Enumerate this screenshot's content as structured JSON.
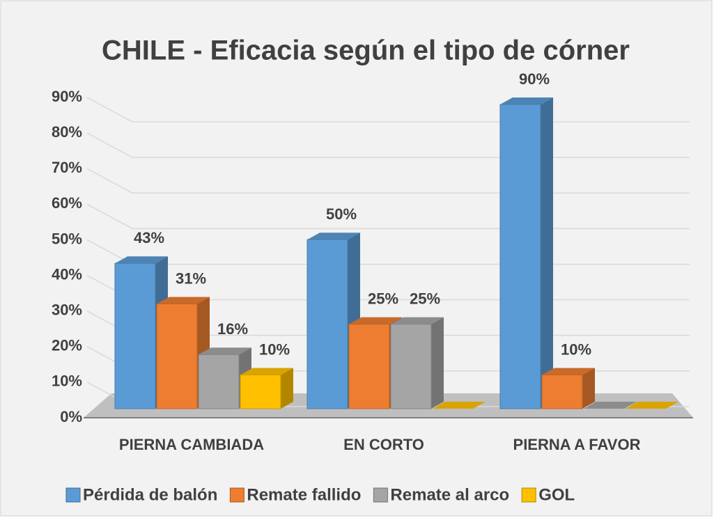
{
  "chart_data": {
    "type": "bar3d",
    "title": "CHILE - Eficacia según el tipo de córner",
    "categories": [
      "PIERNA CAMBIADA",
      "EN CORTO",
      "PIERNA A FAVOR"
    ],
    "series": [
      {
        "name": "Pérdida de balón",
        "color": "#5b9bd5",
        "values": [
          43,
          50,
          90
        ],
        "value_labels": [
          "43%",
          "50%",
          "90%"
        ]
      },
      {
        "name": "Remate fallido",
        "color": "#ed7d31",
        "values": [
          31,
          25,
          10
        ],
        "value_labels": [
          "31%",
          "25%",
          "10%"
        ]
      },
      {
        "name": "Remate al arco",
        "color": "#a5a5a5",
        "values": [
          16,
          25,
          0
        ],
        "value_labels": [
          "16%",
          "25%",
          null
        ]
      },
      {
        "name": "GOL",
        "color": "#ffc000",
        "values": [
          10,
          0,
          0
        ],
        "value_labels": [
          "10%",
          null,
          null
        ]
      }
    ],
    "ylim": [
      0,
      90
    ],
    "yticks": [
      {
        "value": 0,
        "label": "0%"
      },
      {
        "value": 10,
        "label": "10%"
      },
      {
        "value": 20,
        "label": "20%"
      },
      {
        "value": 30,
        "label": "30%"
      },
      {
        "value": 40,
        "label": "40%"
      },
      {
        "value": 50,
        "label": "50%"
      },
      {
        "value": 60,
        "label": "60%"
      },
      {
        "value": 70,
        "label": "70%"
      },
      {
        "value": 80,
        "label": "80%"
      },
      {
        "value": 90,
        "label": "90%"
      }
    ],
    "grid": true,
    "legend": "bottom"
  }
}
